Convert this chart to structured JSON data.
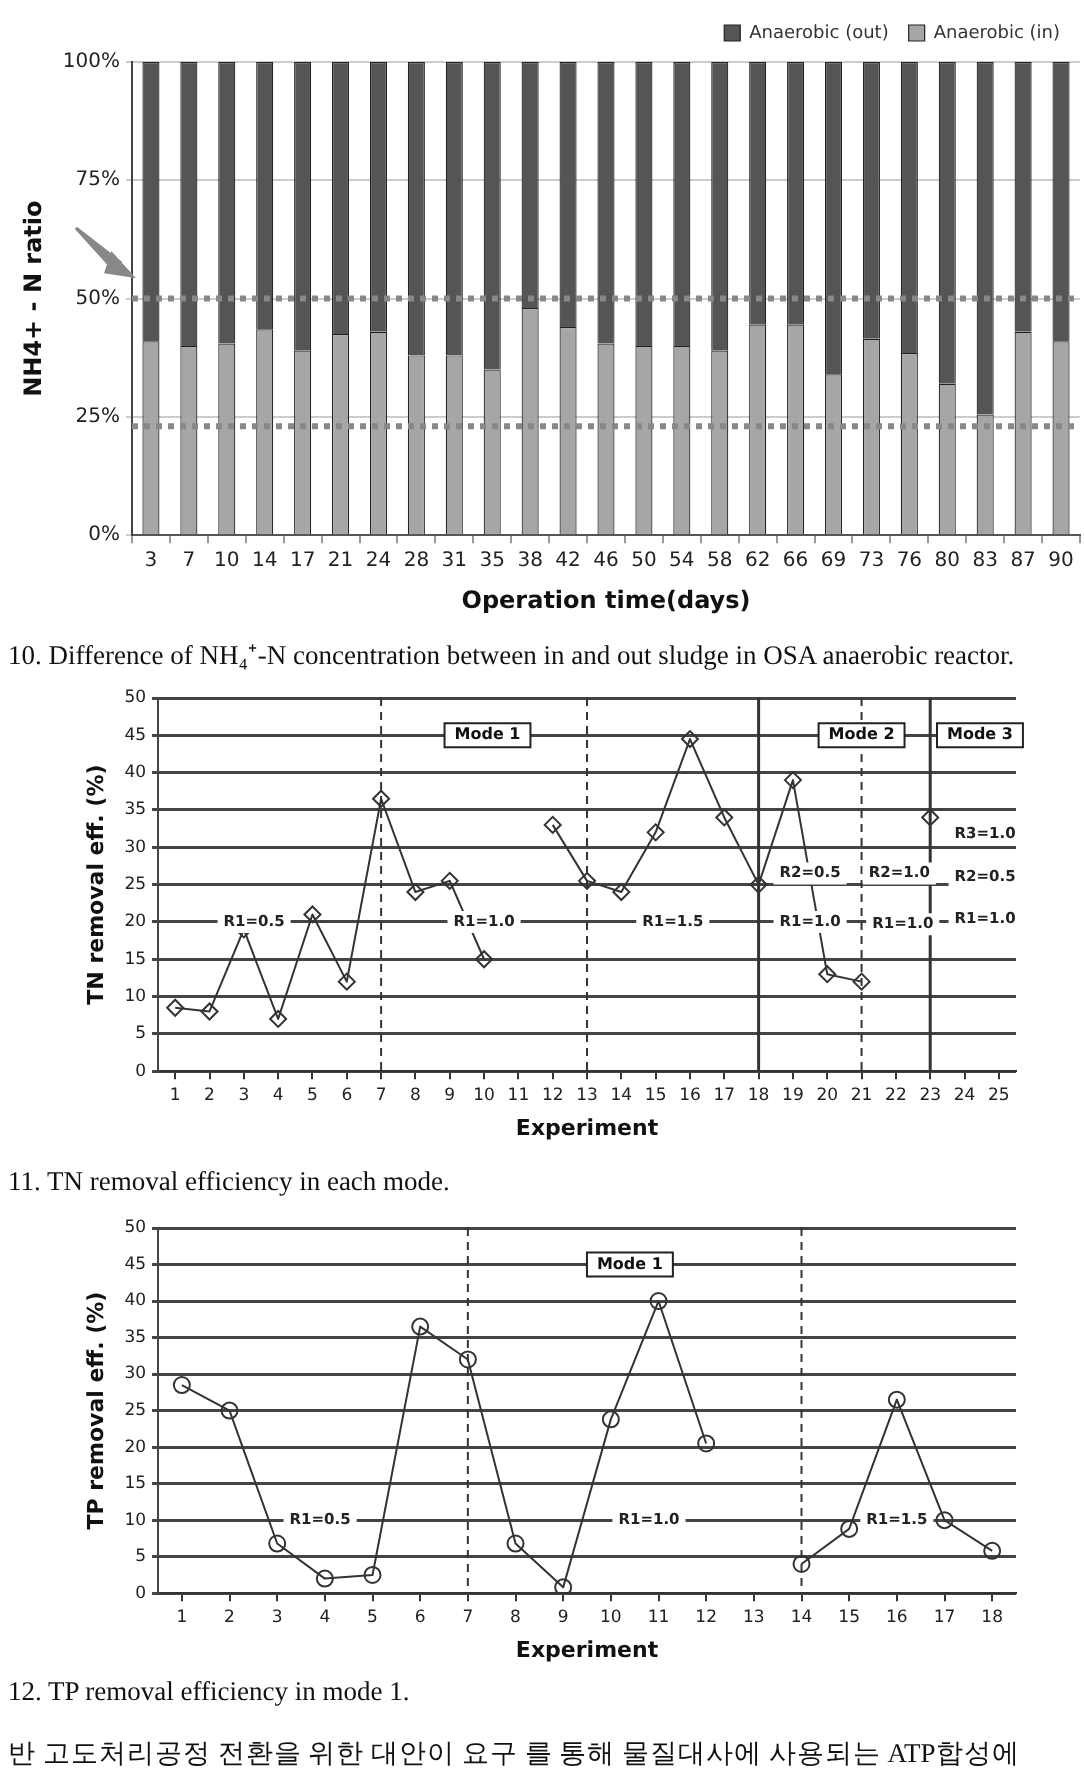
{
  "chart_data": [
    {
      "type": "bar",
      "stacked": true,
      "xlabel": "Operation time(days)",
      "ylabel": "NH4+ - N ratio",
      "categories": [
        "3",
        "7",
        "10",
        "14",
        "17",
        "21",
        "24",
        "28",
        "31",
        "35",
        "38",
        "42",
        "46",
        "50",
        "54",
        "58",
        "62",
        "66",
        "69",
        "73",
        "76",
        "80",
        "83",
        "87",
        "90"
      ],
      "series": [
        {
          "name": "Anaerobic (in)",
          "color": "#a6a6a6",
          "values": [
            41,
            40,
            40.5,
            43.5,
            39,
            42.5,
            43,
            38,
            38,
            35,
            48,
            44,
            40.5,
            40,
            40,
            39,
            44.5,
            44.5,
            34,
            41.5,
            38.5,
            32,
            25.5,
            43,
            41
          ]
        },
        {
          "name": "Anaerobic (out)",
          "color": "#555555",
          "values": [
            59,
            60,
            59.5,
            56.5,
            61,
            57.5,
            57,
            62,
            62,
            65,
            52,
            56,
            59.5,
            60,
            60,
            61,
            55.5,
            55.5,
            66,
            58.5,
            61.5,
            68,
            74.5,
            57,
            59
          ]
        }
      ],
      "ylim": [
        0,
        100
      ],
      "yticks": [
        {
          "value": 0,
          "label": "0%"
        },
        {
          "value": 25,
          "label": "25%"
        },
        {
          "value": 50,
          "label": "50%"
        },
        {
          "value": 75,
          "label": "75%"
        },
        {
          "value": 100,
          "label": "100%"
        }
      ],
      "grid": "y",
      "legend": "top right",
      "ref_lines": [
        {
          "axis": "y",
          "value": 50,
          "color": "#888888",
          "line_style": "dotted"
        },
        {
          "axis": "y",
          "value": 23,
          "color": "#888888",
          "line_style": "dotted"
        }
      ],
      "annotations": [
        "10. Difference of NH₄⁺-N concentration between in and out sludge in OSA anaerobic reactor."
      ]
    },
    {
      "type": "line",
      "xlabel": "Experiment",
      "ylabel": "TN removal eff. (%)",
      "x": [
        1,
        2,
        3,
        4,
        5,
        6,
        7,
        8,
        9,
        10,
        11,
        12,
        13,
        14,
        15,
        16,
        17,
        18,
        19,
        20,
        21,
        22,
        23
      ],
      "series": [
        {
          "color": "#333333",
          "values": [
            8.5,
            8,
            19,
            7,
            21,
            12,
            36.5,
            24,
            25.5,
            15,
            null,
            33,
            25.5,
            24,
            32,
            44.5,
            34,
            25,
            39,
            13,
            12,
            null,
            34
          ]
        }
      ],
      "xlim": [
        0.5,
        25.5
      ],
      "xticks": [
        1,
        2,
        3,
        4,
        5,
        6,
        7,
        8,
        9,
        10,
        11,
        12,
        13,
        14,
        15,
        16,
        17,
        18,
        19,
        20,
        21,
        22,
        23,
        24,
        25
      ],
      "ylim": [
        0,
        50
      ],
      "yticks": [
        0,
        5,
        10,
        15,
        20,
        25,
        30,
        35,
        40,
        45,
        50
      ],
      "grid": "y",
      "marker": "diamond",
      "ref_lines": [
        {
          "axis": "x",
          "value": 7,
          "color": "#333333",
          "line_style": "dashed"
        },
        {
          "axis": "x",
          "value": 13,
          "color": "#333333",
          "line_style": "dashed"
        },
        {
          "axis": "x",
          "value": 18,
          "color": "#333333",
          "line_style": "solid"
        },
        {
          "axis": "x",
          "value": 21,
          "color": "#333333",
          "line_style": "dashed"
        },
        {
          "axis": "x",
          "value": 23,
          "color": "#333333",
          "line_style": "solid"
        }
      ],
      "annotations": [
        "Mode 1",
        "Mode 2",
        "Mode 3",
        {
          "text": "R1=0.5",
          "x": 3.3,
          "y": 20
        },
        {
          "text": "R1=1.0",
          "x": 10,
          "y": 20
        },
        {
          "text": "R1=1.5",
          "x": 15.5,
          "y": 20
        },
        {
          "text": "R2=0.5",
          "x": 19.5,
          "y": 26.5
        },
        {
          "text": "R1=1.0",
          "x": 19.5,
          "y": 20
        },
        {
          "text": "R2=1.0",
          "x": 22.1,
          "y": 26.5
        },
        {
          "text": "R1=1.0",
          "x": 22.2,
          "y": 19.7
        },
        {
          "text": "R3=1.0",
          "x": 24.6,
          "y": 31.8
        },
        {
          "text": "R2=0.5",
          "x": 24.6,
          "y": 26
        },
        {
          "text": "R1=1.0",
          "x": 24.6,
          "y": 20.4
        },
        "11. TN removal efficiency in each mode."
      ]
    },
    {
      "type": "line",
      "xlabel": "Experiment",
      "ylabel": "TP removal eff. (%)",
      "x": [
        1,
        2,
        3,
        4,
        5,
        6,
        7,
        8,
        9,
        10,
        11,
        12,
        13,
        14,
        15,
        16,
        17,
        18
      ],
      "series": [
        {
          "color": "#333333",
          "values": [
            28.5,
            25,
            6.8,
            2,
            2.5,
            36.5,
            32,
            6.8,
            0.8,
            23.8,
            40,
            20.5,
            null,
            4,
            8.8,
            26.5,
            10,
            5.8
          ]
        }
      ],
      "xlim": [
        0.5,
        18.5
      ],
      "xticks": [
        1,
        2,
        3,
        4,
        5,
        6,
        7,
        8,
        9,
        10,
        11,
        12,
        13,
        14,
        15,
        16,
        17,
        18
      ],
      "ylim": [
        0,
        50
      ],
      "yticks": [
        0,
        5,
        10,
        15,
        20,
        25,
        30,
        35,
        40,
        45,
        50
      ],
      "grid": "y",
      "marker": "circle",
      "ref_lines": [
        {
          "axis": "x",
          "value": 7,
          "color": "#333333",
          "line_style": "dashed"
        },
        {
          "axis": "x",
          "value": 14,
          "color": "#333333",
          "line_style": "dashed"
        }
      ],
      "annotations": [
        "Mode 1",
        {
          "text": "R1=0.5",
          "x": 3.9,
          "y": 10
        },
        {
          "text": "R1=1.0",
          "x": 10.8,
          "y": 10
        },
        {
          "text": "R1=1.5",
          "x": 16,
          "y": 10
        },
        "12. TP removal efficiency in mode 1.",
        "반 고도처리공정 전환을 위한 대안이 요구 를 통해 물질대사에 사용되는 ATP합성에"
      ]
    }
  ]
}
